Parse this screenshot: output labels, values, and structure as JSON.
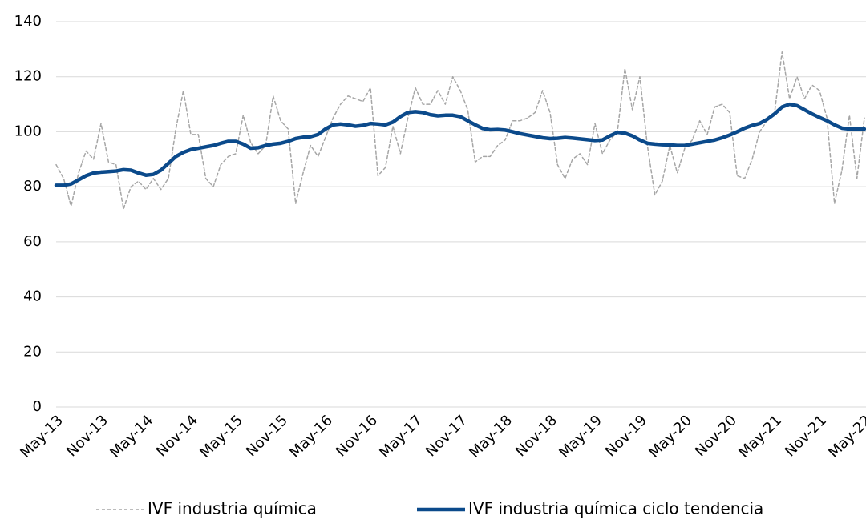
{
  "chart_data": {
    "type": "line",
    "categories": [
      "May-13",
      null,
      null,
      null,
      null,
      null,
      "Nov-13",
      null,
      null,
      null,
      null,
      null,
      "May-14",
      null,
      null,
      null,
      null,
      null,
      "Nov-14",
      null,
      null,
      null,
      null,
      null,
      "May-15",
      null,
      null,
      null,
      null,
      null,
      "Nov-15",
      null,
      null,
      null,
      null,
      null,
      "May-16",
      null,
      null,
      null,
      null,
      null,
      "Nov-16",
      null,
      null,
      null,
      null,
      null,
      "May-17",
      null,
      null,
      null,
      null,
      null,
      "Nov-17",
      null,
      null,
      null,
      null,
      null,
      "May-18",
      null,
      null,
      null,
      null,
      null,
      "Nov-18",
      null,
      null,
      null,
      null,
      null,
      "May-19",
      null,
      null,
      null,
      null,
      null,
      "Nov-19",
      null,
      null,
      null,
      null,
      null,
      "May-20",
      null,
      null,
      null,
      null,
      null,
      "Nov-20",
      null,
      null,
      null,
      null,
      null,
      "May-21",
      null,
      null,
      null,
      null,
      null,
      "Nov-21",
      null,
      null,
      null,
      null,
      null,
      "May-22"
    ],
    "series": [
      {
        "name": "IVF industria química",
        "color": "#a6a6a6",
        "dashed": true,
        "values": [
          88,
          83,
          73,
          85,
          93,
          90,
          103,
          89,
          88,
          72,
          80,
          82,
          79,
          83,
          79,
          83,
          101,
          115,
          99,
          99,
          83,
          80,
          88,
          91,
          92,
          106,
          96,
          92,
          95,
          113,
          104,
          101,
          74,
          85,
          95,
          91,
          98,
          105,
          110,
          113,
          112,
          111,
          116,
          84,
          87,
          102,
          92,
          105,
          116,
          110,
          110,
          115,
          110,
          120,
          115,
          108,
          89,
          91,
          91,
          95,
          97,
          104,
          104,
          105,
          107,
          115,
          107,
          88,
          83,
          90,
          92,
          88,
          103,
          92,
          97,
          100,
          123,
          108,
          120,
          95,
          77,
          82,
          95,
          85,
          94,
          97,
          104,
          99,
          109,
          110,
          107,
          84,
          83,
          90,
          100,
          104,
          107,
          129,
          112,
          120,
          112,
          117,
          115,
          105,
          74,
          86,
          106,
          83,
          105
        ]
      },
      {
        "name": "IVF industria química ciclo tendencia",
        "color": "#0b4a8b",
        "dashed": false,
        "values": [
          80.5,
          80.5,
          81,
          82.5,
          84,
          85,
          85.3,
          85.5,
          85.7,
          86.2,
          86,
          85,
          84.2,
          84.5,
          86,
          88.5,
          91,
          92.5,
          93.5,
          94,
          94.5,
          95,
          95.8,
          96.5,
          96.5,
          95.5,
          94,
          94.2,
          95,
          95.5,
          95.8,
          96.5,
          97.5,
          98,
          98.2,
          99,
          101,
          102.5,
          102.8,
          102.5,
          102,
          102.3,
          103,
          102.8,
          102.5,
          103.5,
          105.5,
          107,
          107.3,
          107,
          106.2,
          105.8,
          106,
          106,
          105.5,
          104,
          102.5,
          101.2,
          100.7,
          100.8,
          100.6,
          100,
          99.3,
          98.8,
          98.3,
          97.8,
          97.5,
          97.6,
          97.9,
          97.7,
          97.4,
          97.1,
          96.8,
          97,
          98.5,
          99.8,
          99.5,
          98.5,
          97,
          95.8,
          95.5,
          95.3,
          95.2,
          95,
          95,
          95.5,
          96,
          96.5,
          97,
          97.8,
          98.8,
          100,
          101.3,
          102.3,
          103,
          104.5,
          106.5,
          109,
          110,
          109.5,
          108,
          106.5,
          105.2,
          104,
          102.5,
          101.3,
          101,
          101.1,
          101
        ]
      }
    ],
    "ylim": [
      0,
      140
    ],
    "yticks": [
      0,
      20,
      40,
      60,
      80,
      100,
      120,
      140
    ],
    "grid": true,
    "legend": "bottom"
  }
}
